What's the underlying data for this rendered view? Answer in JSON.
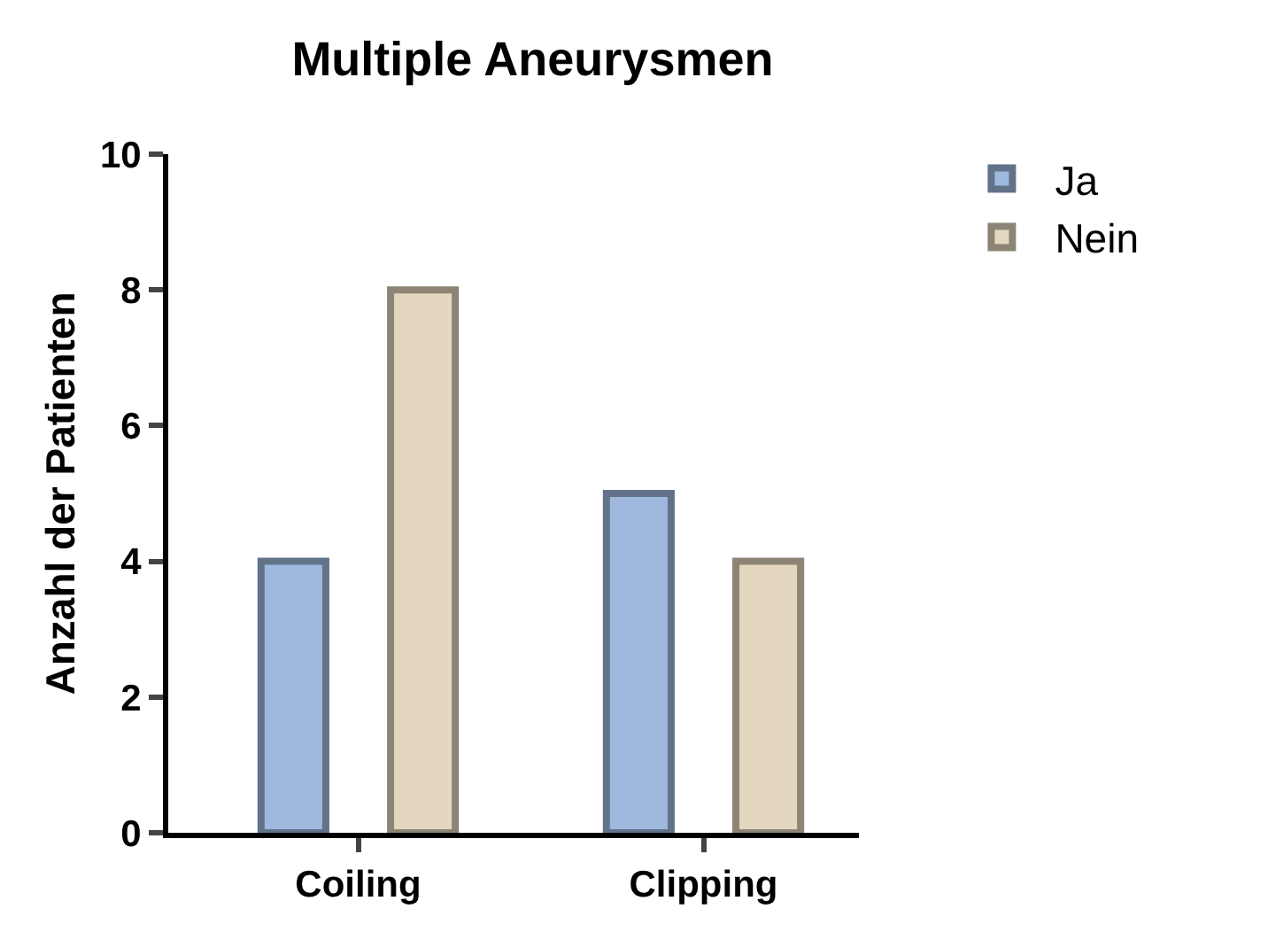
{
  "chart_data": {
    "type": "bar",
    "title": "Multiple Aneurysmen",
    "ylabel": "Anzahl der Patienten",
    "categories": [
      "Coiling",
      "Clipping"
    ],
    "series": [
      {
        "name": "Ja",
        "color": "#9fb8de",
        "values": [
          4,
          5
        ]
      },
      {
        "name": "Nein",
        "color": "#e3d7bf",
        "values": [
          8,
          4
        ]
      }
    ],
    "ylim": [
      0,
      10
    ],
    "yticks": [
      0,
      2,
      4,
      6,
      8,
      10
    ],
    "legend": "top right"
  }
}
